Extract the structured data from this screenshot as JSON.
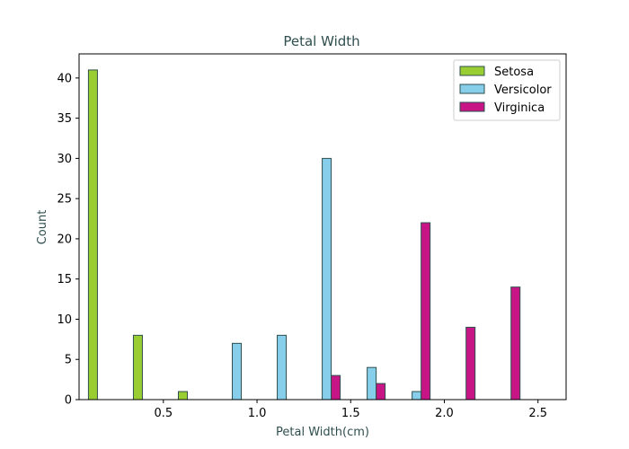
{
  "chart_data": {
    "type": "bar",
    "title": "Petal Width",
    "xlabel": "Petal Width(cm)",
    "ylabel": "Count",
    "xlim": [
      0.05,
      2.65
    ],
    "ylim": [
      0,
      43
    ],
    "x_ticks": [
      0.5,
      1.0,
      1.5,
      2.0,
      2.5
    ],
    "x_tick_labels": [
      "0.5",
      "1.0",
      "1.5",
      "2.0",
      "2.5"
    ],
    "y_ticks": [
      0,
      5,
      10,
      15,
      20,
      25,
      30,
      35,
      40
    ],
    "y_tick_labels": [
      "0",
      "5",
      "10",
      "15",
      "20",
      "25",
      "30",
      "35",
      "40"
    ],
    "bin_edges": [
      0.1,
      0.34,
      0.58,
      0.82,
      1.06,
      1.3,
      1.54,
      1.78,
      2.02,
      2.26,
      2.5
    ],
    "grid": false,
    "legend_position": "top-right",
    "edge_color": "#2f4f4f",
    "series": [
      {
        "name": "Setosa",
        "color": "#9acd32",
        "values": [
          41,
          8,
          1,
          0,
          0,
          0,
          0,
          0,
          0,
          0
        ]
      },
      {
        "name": "Versicolor",
        "color": "#87ceeb",
        "values": [
          0,
          0,
          0,
          7,
          8,
          30,
          4,
          1,
          0,
          0
        ]
      },
      {
        "name": "Virginica",
        "color": "#c71585",
        "values": [
          0,
          0,
          0,
          0,
          0,
          3,
          2,
          22,
          9,
          14
        ]
      }
    ]
  }
}
